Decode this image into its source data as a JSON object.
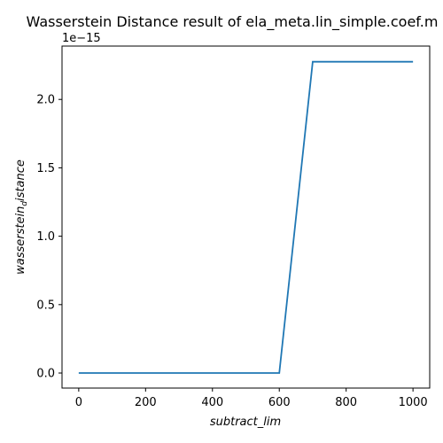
{
  "chart_data": {
    "type": "line",
    "title": "Wasserstein Distance result of ela_meta.lin_simple.coef.m",
    "xlabel": "subtract_lim",
    "ylabel_main": "wasserstein",
    "ylabel_sub": "d",
    "ylabel_tail": "istance",
    "offset_text": "1e−15",
    "x": [
      0,
      100,
      200,
      300,
      400,
      500,
      600,
      700,
      800,
      900,
      1000
    ],
    "series": [
      {
        "values": [
          0,
          0,
          0,
          0,
          0,
          0,
          0,
          2.2755,
          2.2755,
          2.2755,
          2.2755
        ],
        "color": "#1f77b4"
      }
    ],
    "xlim": [
      -50,
      1050
    ],
    "ylim": [
      -0.11,
      2.39
    ],
    "xticks": [
      0,
      200,
      400,
      600,
      800,
      1000
    ],
    "xtick_labels": [
      "0",
      "200",
      "400",
      "600",
      "800",
      "1000"
    ],
    "yticks": [
      0.0,
      0.5,
      1.0,
      1.5,
      2.0
    ],
    "ytick_labels": [
      "0.0",
      "0.5",
      "1.0",
      "1.5",
      "2.0"
    ],
    "grid": false
  }
}
